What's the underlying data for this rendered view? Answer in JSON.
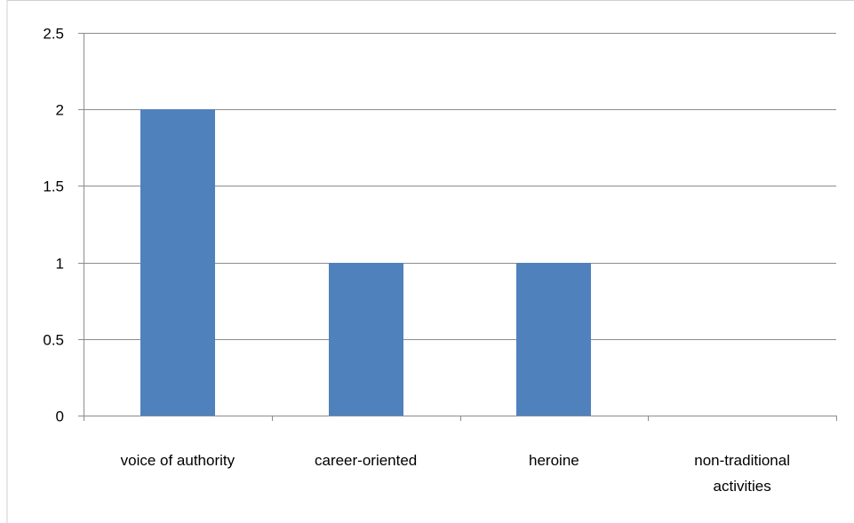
{
  "chart_data": {
    "type": "bar",
    "categories": [
      [
        "voice of authority"
      ],
      [
        "career-oriented"
      ],
      [
        "heroine"
      ],
      [
        "non-traditional",
        "activities"
      ]
    ],
    "values": [
      2,
      1,
      1,
      0
    ],
    "ylim": [
      0,
      2.5
    ],
    "yticks": [
      0,
      0.5,
      1,
      1.5,
      2,
      2.5
    ],
    "ytick_labels": [
      "0",
      "0.5",
      "1",
      "1.5",
      "2",
      "2.5"
    ],
    "grid": true,
    "legend": "none",
    "colors": {
      "bar": "#4f81bd",
      "gridline": "#8c8c8c",
      "axis": "#8c8c8c",
      "frame": "#d0d0d0"
    }
  }
}
